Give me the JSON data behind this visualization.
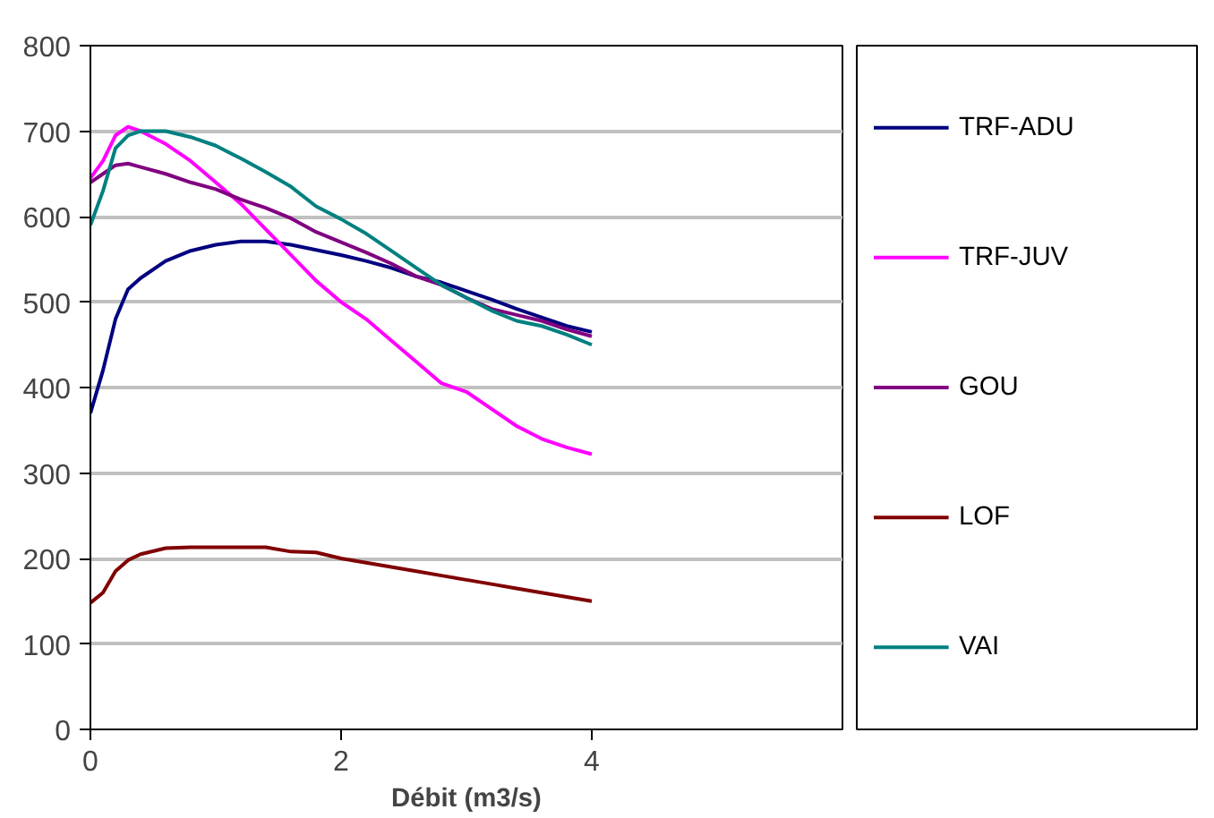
{
  "chart_data": {
    "type": "line",
    "xlabel": "Débit (m3/s)",
    "xlim": [
      0,
      6
    ],
    "xticks": [
      0,
      2,
      4
    ],
    "ylim": [
      0,
      800
    ],
    "yticks": [
      0,
      100,
      200,
      300,
      400,
      500,
      600,
      700,
      800
    ],
    "grid": "y",
    "legend": "right",
    "marker": "none",
    "line_style": "solid",
    "x": [
      0,
      0.1,
      0.2,
      0.3,
      0.4,
      0.6,
      0.8,
      1.0,
      1.2,
      1.4,
      1.6,
      1.8,
      2.0,
      2.2,
      2.4,
      2.6,
      2.8,
      3.0,
      3.2,
      3.4,
      3.6,
      3.8,
      4.0
    ],
    "series": [
      {
        "name": "TRF-ADU",
        "color": "#000080",
        "values": [
          370,
          420,
          480,
          515,
          528,
          548,
          560,
          567,
          571,
          571,
          567,
          561,
          555,
          548,
          540,
          530,
          523,
          513,
          503,
          492,
          482,
          472,
          465
        ]
      },
      {
        "name": "TRF-JUV",
        "color": "#ff00ff",
        "values": [
          645,
          665,
          695,
          705,
          700,
          685,
          665,
          640,
          615,
          585,
          555,
          525,
          500,
          480,
          455,
          430,
          405,
          395,
          375,
          355,
          340,
          330,
          322
        ]
      },
      {
        "name": "GOU",
        "color": "#800080",
        "values": [
          640,
          650,
          660,
          662,
          658,
          650,
          640,
          632,
          620,
          610,
          598,
          582,
          570,
          558,
          545,
          530,
          520,
          505,
          492,
          485,
          478,
          468,
          460
        ]
      },
      {
        "name": "LOF",
        "color": "#800000",
        "values": [
          148,
          160,
          185,
          198,
          205,
          212,
          213,
          213,
          213,
          213,
          208,
          207,
          200,
          195,
          190,
          185,
          180,
          175,
          170,
          165,
          160,
          155,
          150
        ]
      },
      {
        "name": "VAI",
        "color": "#008080",
        "values": [
          590,
          630,
          680,
          695,
          700,
          700,
          693,
          683,
          668,
          652,
          635,
          612,
          597,
          580,
          560,
          540,
          520,
          505,
          490,
          478,
          472,
          462,
          450
        ]
      }
    ]
  }
}
